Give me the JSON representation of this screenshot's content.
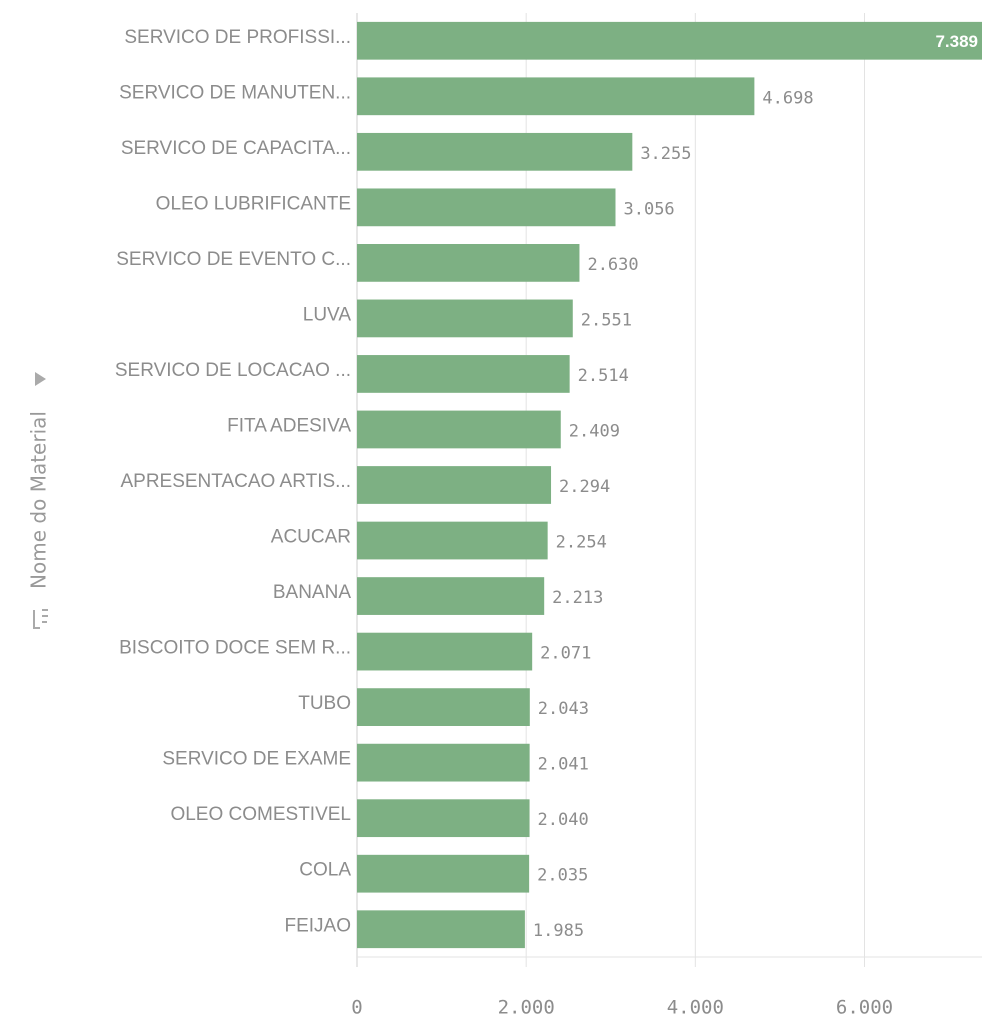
{
  "chart_data": {
    "type": "bar",
    "orientation": "horizontal",
    "y_label": "Nome do Material",
    "categories": [
      "SERVICO DE PROFISSI...",
      "SERVICO DE MANUTEN...",
      "SERVICO DE CAPACITA...",
      "OLEO LUBRIFICANTE",
      "SERVICO DE EVENTO C...",
      "LUVA",
      "SERVICO DE LOCACAO ...",
      "FITA ADESIVA",
      "APRESENTACAO ARTIS...",
      "ACUCAR",
      "BANANA",
      "BISCOITO DOCE SEM R...",
      "TUBO",
      "SERVICO DE EXAME",
      "OLEO COMESTIVEL",
      "COLA",
      "FEIJAO"
    ],
    "values": [
      7389,
      4698,
      3255,
      3056,
      2630,
      2551,
      2514,
      2409,
      2294,
      2254,
      2213,
      2071,
      2043,
      2041,
      2040,
      2035,
      1985
    ],
    "value_labels": [
      "7.389",
      "4.698",
      "3.255",
      "3.056",
      "2.630",
      "2.551",
      "2.514",
      "2.409",
      "2.294",
      "2.254",
      "2.213",
      "2.071",
      "2.043",
      "2.041",
      "2.040",
      "2.035",
      "1.985"
    ],
    "color": "#7db083",
    "xlim": [
      0,
      7389
    ],
    "xticks": [
      0,
      {
        "value": 2000,
        "label": "2.000"
      },
      {
        "value": 4000,
        "label": "4.000"
      },
      {
        "value": 6000,
        "label": "6.000"
      }
    ],
    "grid": true
  }
}
